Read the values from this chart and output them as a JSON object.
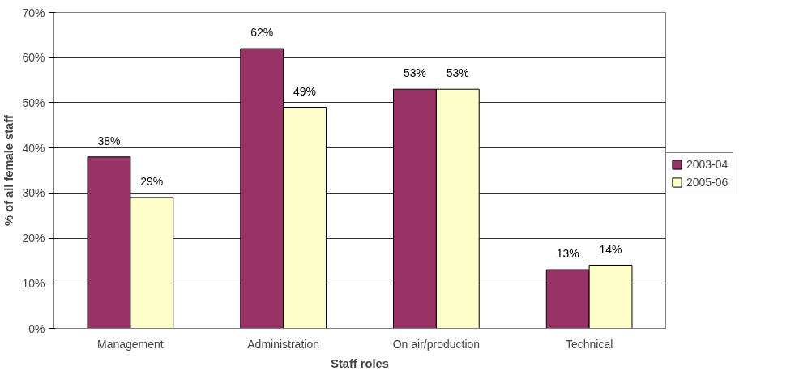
{
  "chart_data": {
    "type": "bar",
    "xlabel": "Staff roles",
    "ylabel": "% of all female staff",
    "categories": [
      "Management",
      "Administration",
      "On air/production",
      "Technical"
    ],
    "series": [
      {
        "name": "2003-04",
        "color": "#993366",
        "values": [
          38,
          62,
          53,
          13
        ],
        "value_labels": [
          "38%",
          "62%",
          "53%",
          "13%"
        ]
      },
      {
        "name": "2005-06",
        "color": "#ffffcc",
        "values": [
          29,
          49,
          53,
          14
        ],
        "value_labels": [
          "29%",
          "49%",
          "53%",
          "14%"
        ]
      }
    ],
    "ylim": [
      0,
      70
    ],
    "yticks": [
      {
        "value": 0,
        "label": "0%"
      },
      {
        "value": 10,
        "label": "10%"
      },
      {
        "value": 20,
        "label": "20%"
      },
      {
        "value": 30,
        "label": "30%"
      },
      {
        "value": 40,
        "label": "40%"
      },
      {
        "value": 50,
        "label": "50%"
      },
      {
        "value": 60,
        "label": "60%"
      },
      {
        "value": 70,
        "label": "70%"
      }
    ],
    "grid": "y",
    "legend": "right"
  }
}
